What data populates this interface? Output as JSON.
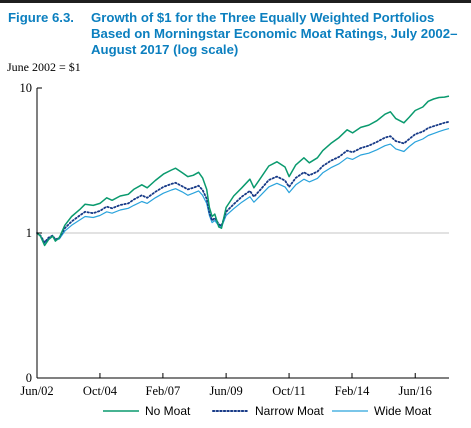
{
  "figure": {
    "label": "Figure 6.3.",
    "title": "Growth of $1 for the Three Equally Weighted Portfolios Based on Morningstar Economic Moat Ratings, July 2002–August 2017 (log scale)",
    "units_note": "June 2002 = $1"
  },
  "colors": {
    "no_moat": "#0a9a6e",
    "narrow_moat": "#173a87",
    "wide_moat": "#2aa3dc",
    "reference_line": "#c4c4c4",
    "axis": "#000000",
    "title": "#0b7fbf"
  },
  "chart_data": {
    "type": "line",
    "title": "Growth of $1 for the Three Equally Weighted Portfolios Based on Morningstar Economic Moat Ratings, July 2002–August 2017 (log scale)",
    "xlabel": "",
    "ylabel": "June 2002 = $1",
    "log_scale_y": true,
    "xlim": [
      2002.42,
      2017.67
    ],
    "ylim": [
      0.1,
      10
    ],
    "x_ticks": [
      {
        "label": "Jun/02",
        "x": 2002.42
      },
      {
        "label": "Oct/04",
        "x": 2004.75
      },
      {
        "label": "Feb/07",
        "x": 2007.08
      },
      {
        "label": "Jun/09",
        "x": 2009.42
      },
      {
        "label": "Oct/11",
        "x": 2011.75
      },
      {
        "label": "Feb/14",
        "x": 2014.08
      },
      {
        "label": "Jun/16",
        "x": 2016.42
      }
    ],
    "y_ticks": [
      {
        "label": "0",
        "value": 0.1
      },
      {
        "label": "1",
        "value": 1
      },
      {
        "label": "10",
        "value": 10
      }
    ],
    "reference_line": 1,
    "grid": false,
    "legend_position": "bottom",
    "series": [
      {
        "name": "No Moat",
        "key": "no_moat",
        "style": "solid",
        "points": [
          [
            2002.42,
            1.0
          ],
          [
            2002.55,
            0.95
          ],
          [
            2002.7,
            0.82
          ],
          [
            2002.85,
            0.9
          ],
          [
            2003.0,
            0.95
          ],
          [
            2003.1,
            0.88
          ],
          [
            2003.25,
            0.93
          ],
          [
            2003.45,
            1.13
          ],
          [
            2003.7,
            1.3
          ],
          [
            2004.0,
            1.45
          ],
          [
            2004.2,
            1.58
          ],
          [
            2004.5,
            1.55
          ],
          [
            2004.75,
            1.6
          ],
          [
            2005.0,
            1.75
          ],
          [
            2005.2,
            1.68
          ],
          [
            2005.5,
            1.8
          ],
          [
            2005.8,
            1.85
          ],
          [
            2006.0,
            2.0
          ],
          [
            2006.3,
            2.15
          ],
          [
            2006.5,
            2.05
          ],
          [
            2006.8,
            2.3
          ],
          [
            2007.1,
            2.55
          ],
          [
            2007.4,
            2.72
          ],
          [
            2007.55,
            2.8
          ],
          [
            2007.8,
            2.6
          ],
          [
            2008.0,
            2.45
          ],
          [
            2008.2,
            2.5
          ],
          [
            2008.4,
            2.62
          ],
          [
            2008.55,
            2.4
          ],
          [
            2008.7,
            2.0
          ],
          [
            2008.8,
            1.5
          ],
          [
            2008.9,
            1.3
          ],
          [
            2009.0,
            1.35
          ],
          [
            2009.15,
            1.1
          ],
          [
            2009.25,
            1.08
          ],
          [
            2009.42,
            1.5
          ],
          [
            2009.7,
            1.8
          ],
          [
            2010.0,
            2.05
          ],
          [
            2010.3,
            2.35
          ],
          [
            2010.45,
            2.05
          ],
          [
            2010.7,
            2.4
          ],
          [
            2011.0,
            2.9
          ],
          [
            2011.3,
            3.1
          ],
          [
            2011.6,
            2.85
          ],
          [
            2011.75,
            2.45
          ],
          [
            2012.0,
            2.95
          ],
          [
            2012.3,
            3.3
          ],
          [
            2012.5,
            3.05
          ],
          [
            2012.8,
            3.3
          ],
          [
            2013.0,
            3.7
          ],
          [
            2013.3,
            4.15
          ],
          [
            2013.6,
            4.55
          ],
          [
            2013.9,
            5.15
          ],
          [
            2014.1,
            4.9
          ],
          [
            2014.4,
            5.35
          ],
          [
            2014.7,
            5.55
          ],
          [
            2015.0,
            5.95
          ],
          [
            2015.3,
            6.6
          ],
          [
            2015.5,
            6.85
          ],
          [
            2015.7,
            6.15
          ],
          [
            2016.0,
            5.75
          ],
          [
            2016.2,
            6.3
          ],
          [
            2016.42,
            7.0
          ],
          [
            2016.7,
            7.4
          ],
          [
            2016.9,
            8.1
          ],
          [
            2017.1,
            8.4
          ],
          [
            2017.3,
            8.6
          ],
          [
            2017.5,
            8.65
          ],
          [
            2017.67,
            8.8
          ]
        ]
      },
      {
        "name": "Narrow Moat",
        "key": "narrow_moat",
        "style": "dotted",
        "points": [
          [
            2002.42,
            1.0
          ],
          [
            2002.55,
            0.96
          ],
          [
            2002.7,
            0.86
          ],
          [
            2002.85,
            0.93
          ],
          [
            2003.0,
            0.96
          ],
          [
            2003.1,
            0.9
          ],
          [
            2003.25,
            0.93
          ],
          [
            2003.45,
            1.08
          ],
          [
            2003.7,
            1.2
          ],
          [
            2004.0,
            1.32
          ],
          [
            2004.2,
            1.4
          ],
          [
            2004.5,
            1.37
          ],
          [
            2004.75,
            1.42
          ],
          [
            2005.0,
            1.52
          ],
          [
            2005.2,
            1.48
          ],
          [
            2005.5,
            1.56
          ],
          [
            2005.8,
            1.6
          ],
          [
            2006.0,
            1.7
          ],
          [
            2006.3,
            1.82
          ],
          [
            2006.5,
            1.75
          ],
          [
            2006.8,
            1.92
          ],
          [
            2007.1,
            2.08
          ],
          [
            2007.4,
            2.18
          ],
          [
            2007.55,
            2.22
          ],
          [
            2007.8,
            2.1
          ],
          [
            2008.0,
            2.0
          ],
          [
            2008.2,
            2.05
          ],
          [
            2008.4,
            2.12
          ],
          [
            2008.55,
            1.98
          ],
          [
            2008.7,
            1.72
          ],
          [
            2008.8,
            1.38
          ],
          [
            2008.9,
            1.22
          ],
          [
            2009.0,
            1.27
          ],
          [
            2009.15,
            1.15
          ],
          [
            2009.25,
            1.12
          ],
          [
            2009.42,
            1.4
          ],
          [
            2009.7,
            1.58
          ],
          [
            2010.0,
            1.78
          ],
          [
            2010.3,
            1.95
          ],
          [
            2010.45,
            1.78
          ],
          [
            2010.7,
            2.0
          ],
          [
            2011.0,
            2.32
          ],
          [
            2011.3,
            2.45
          ],
          [
            2011.6,
            2.3
          ],
          [
            2011.75,
            2.08
          ],
          [
            2012.0,
            2.4
          ],
          [
            2012.3,
            2.62
          ],
          [
            2012.5,
            2.5
          ],
          [
            2012.8,
            2.65
          ],
          [
            2013.0,
            2.9
          ],
          [
            2013.3,
            3.15
          ],
          [
            2013.6,
            3.35
          ],
          [
            2013.9,
            3.7
          ],
          [
            2014.1,
            3.6
          ],
          [
            2014.4,
            3.85
          ],
          [
            2014.7,
            4.0
          ],
          [
            2015.0,
            4.25
          ],
          [
            2015.3,
            4.55
          ],
          [
            2015.5,
            4.65
          ],
          [
            2015.7,
            4.3
          ],
          [
            2016.0,
            4.15
          ],
          [
            2016.2,
            4.45
          ],
          [
            2016.42,
            4.8
          ],
          [
            2016.7,
            5.0
          ],
          [
            2016.9,
            5.3
          ],
          [
            2017.1,
            5.45
          ],
          [
            2017.3,
            5.6
          ],
          [
            2017.5,
            5.75
          ],
          [
            2017.67,
            5.85
          ]
        ]
      },
      {
        "name": "Wide Moat",
        "key": "wide_moat",
        "style": "solid",
        "points": [
          [
            2002.42,
            1.0
          ],
          [
            2002.55,
            0.95
          ],
          [
            2002.7,
            0.85
          ],
          [
            2002.85,
            0.92
          ],
          [
            2003.0,
            0.95
          ],
          [
            2003.1,
            0.89
          ],
          [
            2003.25,
            0.91
          ],
          [
            2003.45,
            1.03
          ],
          [
            2003.7,
            1.13
          ],
          [
            2004.0,
            1.23
          ],
          [
            2004.2,
            1.3
          ],
          [
            2004.5,
            1.28
          ],
          [
            2004.75,
            1.32
          ],
          [
            2005.0,
            1.4
          ],
          [
            2005.2,
            1.37
          ],
          [
            2005.5,
            1.44
          ],
          [
            2005.8,
            1.48
          ],
          [
            2006.0,
            1.55
          ],
          [
            2006.3,
            1.65
          ],
          [
            2006.5,
            1.6
          ],
          [
            2006.8,
            1.75
          ],
          [
            2007.1,
            1.88
          ],
          [
            2007.4,
            1.98
          ],
          [
            2007.55,
            2.02
          ],
          [
            2007.8,
            1.92
          ],
          [
            2008.0,
            1.82
          ],
          [
            2008.2,
            1.88
          ],
          [
            2008.4,
            1.95
          ],
          [
            2008.55,
            1.82
          ],
          [
            2008.7,
            1.6
          ],
          [
            2008.8,
            1.32
          ],
          [
            2008.9,
            1.18
          ],
          [
            2009.0,
            1.22
          ],
          [
            2009.15,
            1.12
          ],
          [
            2009.25,
            1.1
          ],
          [
            2009.42,
            1.32
          ],
          [
            2009.7,
            1.47
          ],
          [
            2010.0,
            1.63
          ],
          [
            2010.3,
            1.78
          ],
          [
            2010.45,
            1.63
          ],
          [
            2010.7,
            1.82
          ],
          [
            2011.0,
            2.08
          ],
          [
            2011.3,
            2.2
          ],
          [
            2011.6,
            2.08
          ],
          [
            2011.75,
            1.9
          ],
          [
            2012.0,
            2.15
          ],
          [
            2012.3,
            2.35
          ],
          [
            2012.5,
            2.25
          ],
          [
            2012.8,
            2.38
          ],
          [
            2013.0,
            2.6
          ],
          [
            2013.3,
            2.82
          ],
          [
            2013.6,
            3.0
          ],
          [
            2013.9,
            3.3
          ],
          [
            2014.1,
            3.22
          ],
          [
            2014.4,
            3.45
          ],
          [
            2014.7,
            3.55
          ],
          [
            2015.0,
            3.75
          ],
          [
            2015.3,
            4.0
          ],
          [
            2015.5,
            4.1
          ],
          [
            2015.7,
            3.8
          ],
          [
            2016.0,
            3.65
          ],
          [
            2016.2,
            3.95
          ],
          [
            2016.42,
            4.25
          ],
          [
            2016.7,
            4.45
          ],
          [
            2016.9,
            4.7
          ],
          [
            2017.1,
            4.85
          ],
          [
            2017.3,
            5.0
          ],
          [
            2017.5,
            5.15
          ],
          [
            2017.67,
            5.25
          ]
        ]
      }
    ]
  }
}
